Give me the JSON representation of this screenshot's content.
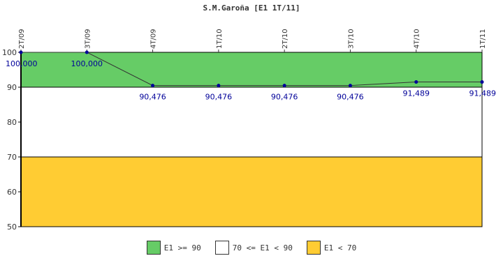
{
  "chart_data": {
    "type": "line",
    "title": "S.M.Garoña [E1 1T/11]",
    "categories": [
      "2T/09",
      "3T/09",
      "4T/09",
      "1T/10",
      "2T/10",
      "3T/10",
      "4T/10",
      "1T/11"
    ],
    "values": [
      100,
      100,
      90.476,
      90.476,
      90.476,
      90.476,
      91.489,
      91.489
    ],
    "data_labels": [
      "100,000",
      "100,000",
      "90,476",
      "90,476",
      "90,476",
      "90,476",
      "91,489",
      "91,489"
    ],
    "ylim": [
      50,
      100
    ],
    "yticks": [
      50,
      60,
      70,
      80,
      90,
      100
    ],
    "bands": [
      {
        "from": 90,
        "to": 100,
        "color": "#66CC66"
      },
      {
        "from": 70,
        "to": 90,
        "color": "#FFFFFF"
      },
      {
        "from": 50,
        "to": 70,
        "color": "#FFCC33"
      }
    ],
    "line_color": "#333333",
    "marker_color": "#000099",
    "grid": false,
    "legend_position": "bottom"
  },
  "legend": {
    "items": [
      {
        "label": "E1 >= 90",
        "color": "#66CC66"
      },
      {
        "label": "70 <= E1 < 90",
        "color": "#FFFFFF"
      },
      {
        "label": "E1 < 70",
        "color": "#FFCC33"
      }
    ]
  }
}
